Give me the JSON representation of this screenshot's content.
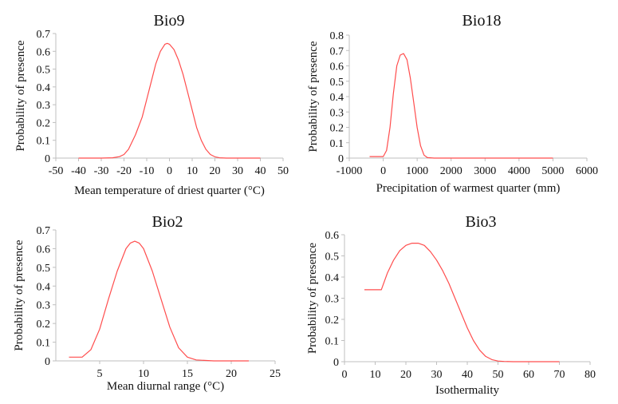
{
  "figure": {
    "line_color": "#ff4d4d",
    "axis_color": "#bfbfbf"
  },
  "chart_data": [
    {
      "type": "line",
      "title": "Bio9",
      "xlabel": "Mean temperature of driest quarter (°C)",
      "ylabel": "Probability of presence",
      "xlim": [
        -50,
        50
      ],
      "ylim": [
        0,
        0.7
      ],
      "xticks": [
        "-50",
        "-40",
        "-30",
        "-20",
        "-10",
        "0",
        "10",
        "20",
        "30",
        "40",
        "50"
      ],
      "yticks": [
        "0",
        "0.1",
        "0.2",
        "0.3",
        "0.4",
        "0.5",
        "0.6",
        "0.7"
      ],
      "grid": false,
      "series": [
        {
          "x": [
            -40,
            -30,
            -25,
            -22,
            -20,
            -18,
            -15,
            -12,
            -10,
            -8,
            -6,
            -4,
            -2,
            -1,
            0,
            2,
            4,
            6,
            8,
            10,
            12,
            14,
            16,
            18,
            20,
            22,
            25,
            30,
            40
          ],
          "y": [
            0,
            0,
            0.002,
            0.008,
            0.02,
            0.05,
            0.13,
            0.23,
            0.33,
            0.43,
            0.53,
            0.6,
            0.64,
            0.645,
            0.64,
            0.61,
            0.55,
            0.47,
            0.37,
            0.27,
            0.17,
            0.1,
            0.05,
            0.02,
            0.007,
            0.002,
            0,
            0,
            0
          ]
        }
      ]
    },
    {
      "type": "line",
      "title": "Bio18",
      "xlabel": "Precipitation of warmest quarter (mm)",
      "ylabel": "Probability of presence",
      "xlim": [
        -1000,
        6000
      ],
      "ylim": [
        0,
        0.8
      ],
      "xticks": [
        "-1000",
        "0",
        "1000",
        "2000",
        "3000",
        "4000",
        "5000",
        "6000"
      ],
      "yticks": [
        "0",
        "0.1",
        "0.2",
        "0.3",
        "0.4",
        "0.5",
        "0.6",
        "0.7",
        "0.8"
      ],
      "grid": false,
      "series": [
        {
          "x": [
            -400,
            -100,
            0,
            100,
            200,
            300,
            400,
            500,
            600,
            700,
            800,
            900,
            1000,
            1100,
            1200,
            1300,
            1500,
            2000,
            3000,
            4000,
            5000
          ],
          "y": [
            0.01,
            0.01,
            0.01,
            0.05,
            0.2,
            0.42,
            0.6,
            0.67,
            0.68,
            0.64,
            0.52,
            0.36,
            0.2,
            0.08,
            0.02,
            0.003,
            0,
            0,
            0,
            0,
            0
          ]
        }
      ]
    },
    {
      "type": "line",
      "title": "Bio2",
      "xlabel": "Mean diurnal range (°C)",
      "ylabel": "Probability of presence",
      "xlim": [
        0,
        25
      ],
      "ylim": [
        0,
        0.7
      ],
      "xticks": [
        "5",
        "10",
        "15",
        "20",
        "25"
      ],
      "yticks": [
        "0",
        "0.1",
        "0.2",
        "0.3",
        "0.4",
        "0.5",
        "0.6",
        "0.7"
      ],
      "grid": false,
      "series": [
        {
          "x": [
            1.5,
            3,
            4,
            5,
            6,
            7,
            8,
            8.5,
            9,
            9.5,
            10,
            11,
            12,
            13,
            14,
            15,
            16,
            18,
            20,
            22
          ],
          "y": [
            0.02,
            0.02,
            0.06,
            0.17,
            0.33,
            0.48,
            0.6,
            0.63,
            0.64,
            0.63,
            0.6,
            0.48,
            0.33,
            0.18,
            0.07,
            0.02,
            0.005,
            0,
            0,
            0
          ]
        }
      ]
    },
    {
      "type": "line",
      "title": "Bio3",
      "xlabel": "Isothermality",
      "ylabel": "Probability of presence",
      "xlim": [
        0,
        80
      ],
      "ylim": [
        0,
        0.6
      ],
      "xticks": [
        "0",
        "10",
        "20",
        "30",
        "40",
        "50",
        "60",
        "70",
        "80"
      ],
      "yticks": [
        "0",
        "0.1",
        "0.2",
        "0.3",
        "0.4",
        "0.5",
        "0.6"
      ],
      "grid": false,
      "series": [
        {
          "x": [
            6.5,
            12,
            14,
            16,
            18,
            20,
            22,
            24,
            26,
            28,
            30,
            32,
            34,
            36,
            38,
            40,
            42,
            44,
            46,
            48,
            50,
            52,
            55,
            60,
            65,
            70
          ],
          "y": [
            0.34,
            0.34,
            0.42,
            0.48,
            0.525,
            0.55,
            0.56,
            0.56,
            0.55,
            0.52,
            0.48,
            0.43,
            0.37,
            0.3,
            0.23,
            0.16,
            0.1,
            0.055,
            0.025,
            0.01,
            0.003,
            0.001,
            0,
            0,
            0,
            0
          ]
        }
      ]
    }
  ]
}
